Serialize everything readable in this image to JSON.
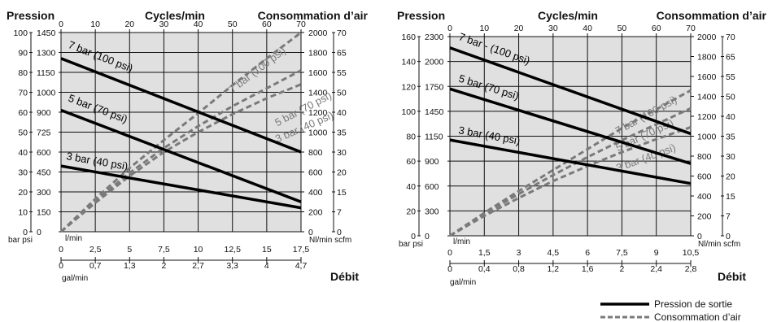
{
  "colors": {
    "plot_bg": "#e0e0e0",
    "grid": "#111111",
    "pressure_line": "#000000",
    "air_line": "#7a7a7a"
  },
  "legend": {
    "pressure": "Pression de sortie",
    "air": "Consommation d’air"
  },
  "chart_data": [
    {
      "type": "line",
      "header_left": "Pression",
      "header_center": "Cycles/min",
      "header_right": "Consommation d’air",
      "flow_label": "Débit",
      "left_units": "bar psi",
      "right_units": "Nl/min scfm",
      "bottom_units_top": "l/min",
      "bottom_units_bottom": "gal/min",
      "xlim": [
        0,
        70
      ],
      "x_ticks": [
        "0",
        "10",
        "20",
        "30",
        "40",
        "50",
        "60",
        "70"
      ],
      "ylim_bar": [
        0,
        100
      ],
      "bar_ticks": [
        "0",
        "10",
        "20",
        "30",
        "40",
        "50",
        "60",
        "70",
        "80",
        "90",
        "100"
      ],
      "psi_ticks": [
        "0",
        "150",
        "300",
        "450",
        "600",
        "725",
        "900",
        "1000",
        "1150",
        "1300",
        "1450"
      ],
      "nl_ticks": [
        "0",
        "200",
        "400",
        "600",
        "800",
        "1000",
        "1200",
        "1400",
        "1600",
        "1800",
        "2000"
      ],
      "scfm_ticks": [
        "0",
        "7",
        "15",
        "20",
        "30",
        "35",
        "40",
        "50",
        "55",
        "65",
        "70"
      ],
      "lpm_ticks": [
        "0",
        "2,5",
        "5",
        "7,5",
        "10",
        "12,5",
        "15",
        "17,5"
      ],
      "gpm_ticks": [
        "0",
        "0,7",
        "1,3",
        "2",
        "2,7",
        "3,3",
        "4",
        "4,7"
      ],
      "pressure_series": [
        {
          "name": "7 bar (100 psi)",
          "x": [
            0,
            70
          ],
          "y": [
            87,
            40
          ]
        },
        {
          "name": "5 bar (70 psi)",
          "x": [
            0,
            70
          ],
          "y": [
            61,
            15
          ]
        },
        {
          "name": "3 bar (40 psi)",
          "x": [
            0,
            70
          ],
          "y": [
            33,
            12
          ]
        }
      ],
      "air_series": [
        {
          "name": "7 bar (100 psi)",
          "x": [
            0,
            10,
            20,
            30,
            40,
            50,
            60,
            70
          ],
          "y": [
            0,
            330,
            640,
            920,
            1190,
            1470,
            1740,
            2000
          ]
        },
        {
          "name": "5 bar (70 psi)",
          "x": [
            0,
            10,
            20,
            30,
            40,
            50,
            60,
            70
          ],
          "y": [
            0,
            310,
            590,
            840,
            1060,
            1260,
            1440,
            1620
          ]
        },
        {
          "name": "3 bar (40 psi)",
          "x": [
            0,
            10,
            20,
            30,
            40,
            50,
            60,
            70
          ],
          "y": [
            0,
            290,
            560,
            800,
            1000,
            1180,
            1340,
            1480
          ]
        }
      ]
    },
    {
      "type": "line",
      "header_left": "Pression",
      "header_center": "Cycles/min",
      "header_right": "Consommation d’air",
      "flow_label": "Débit",
      "left_units": "bar psi",
      "right_units": "Nl/min scfm",
      "bottom_units_top": "l/min",
      "bottom_units_bottom": "gal/min",
      "xlim": [
        0,
        70
      ],
      "x_ticks": [
        "0",
        "10",
        "20",
        "30",
        "40",
        "50",
        "60",
        "70"
      ],
      "ylim_bar": [
        0,
        160
      ],
      "bar_ticks": [
        "0",
        "20",
        "40",
        "60",
        "80",
        "100",
        "120",
        "140",
        "160"
      ],
      "psi_ticks": [
        "0",
        "300",
        "600",
        "900",
        "1150",
        "1450",
        "1750",
        "2000",
        "2300"
      ],
      "nl_ticks": [
        "0",
        "200",
        "400",
        "600",
        "800",
        "1000",
        "1200",
        "1400",
        "1600",
        "1800",
        "2000"
      ],
      "scfm_ticks": [
        "0",
        "7",
        "15",
        "20",
        "30",
        "35",
        "40",
        "50",
        "55",
        "65",
        "70"
      ],
      "lpm_ticks": [
        "0",
        "1,5",
        "3",
        "4,5",
        "6",
        "7,5",
        "9",
        "10,5"
      ],
      "gpm_ticks": [
        "0",
        "0,4",
        "0,8",
        "1,2",
        "1,6",
        "2",
        "2,4",
        "2,8"
      ],
      "pressure_series": [
        {
          "name": "7 bar - (100 psi)",
          "x": [
            0,
            70
          ],
          "y": [
            151,
            82
          ]
        },
        {
          "name": "5 bar (70 psi)",
          "x": [
            0,
            70
          ],
          "y": [
            118,
            58
          ]
        },
        {
          "name": "3 bar (40 psi)",
          "x": [
            0,
            70
          ],
          "y": [
            77,
            42
          ]
        }
      ],
      "air_series": [
        {
          "name": "7 bar (100 psi)",
          "x": [
            0,
            10,
            20,
            30,
            40,
            50,
            60,
            70
          ],
          "y": [
            0,
            230,
            450,
            660,
            870,
            1080,
            1270,
            1460
          ]
        },
        {
          "name": "5 bar (70 psi)",
          "x": [
            0,
            10,
            20,
            30,
            40,
            50,
            60,
            70
          ],
          "y": [
            0,
            220,
            420,
            610,
            790,
            960,
            1120,
            1280
          ]
        },
        {
          "name": "3 bar (40 psi)",
          "x": [
            0,
            10,
            20,
            30,
            40,
            50,
            60,
            70
          ],
          "y": [
            0,
            200,
            380,
            550,
            700,
            840,
            970,
            1090
          ]
        }
      ]
    }
  ]
}
